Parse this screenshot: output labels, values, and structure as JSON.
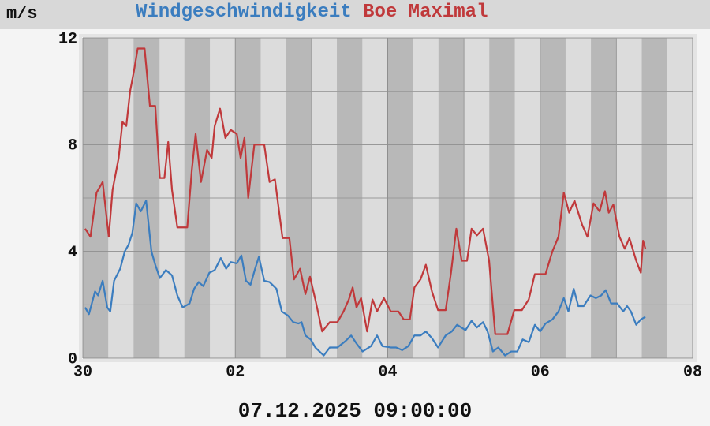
{
  "chart_data": {
    "type": "line",
    "unit_label": "m/s",
    "footer": "07.12.2025 09:00:00",
    "xlim": [
      0,
      8
    ],
    "xticks": [
      {
        "value": 0,
        "label": "30"
      },
      {
        "value": 2,
        "label": "02"
      },
      {
        "value": 4,
        "label": "04"
      },
      {
        "value": 6,
        "label": "06"
      },
      {
        "value": 8,
        "label": "08"
      }
    ],
    "xminor": [
      1,
      3,
      5,
      7
    ],
    "ylim": [
      0,
      12
    ],
    "yticks": [
      0,
      4,
      8,
      12
    ],
    "yminor": [
      2,
      6,
      10
    ],
    "grid": true,
    "series": [
      {
        "name": "Windgeschwindigkeit",
        "color": "#3b7dbf",
        "x": [
          0.03,
          0.08,
          0.16,
          0.2,
          0.26,
          0.32,
          0.36,
          0.41,
          0.49,
          0.55,
          0.6,
          0.65,
          0.7,
          0.76,
          0.83,
          0.9,
          0.95,
          1.01,
          1.09,
          1.17,
          1.24,
          1.31,
          1.4,
          1.46,
          1.52,
          1.58,
          1.66,
          1.73,
          1.81,
          1.88,
          1.94,
          2.02,
          2.08,
          2.14,
          2.2,
          2.26,
          2.31,
          2.38,
          2.45,
          2.54,
          2.61,
          2.69,
          2.76,
          2.83,
          2.87,
          2.92,
          2.99,
          3.05,
          3.16,
          3.24,
          3.34,
          3.45,
          3.52,
          3.59,
          3.67,
          3.78,
          3.86,
          3.93,
          4.04,
          4.11,
          4.19,
          4.27,
          4.35,
          4.43,
          4.5,
          4.58,
          4.66,
          4.76,
          4.84,
          4.91,
          5.02,
          5.1,
          5.17,
          5.25,
          5.31,
          5.38,
          5.45,
          5.54,
          5.62,
          5.7,
          5.77,
          5.85,
          5.93,
          6.0,
          6.07,
          6.16,
          6.24,
          6.31,
          6.37,
          6.44,
          6.5,
          6.57,
          6.66,
          6.73,
          6.8,
          6.86,
          6.93,
          7.01,
          7.09,
          7.14,
          7.19,
          7.26,
          7.32,
          7.38
        ],
        "values": [
          1.9,
          1.65,
          2.5,
          2.35,
          2.9,
          1.9,
          1.75,
          2.9,
          3.35,
          4.0,
          4.25,
          4.7,
          5.8,
          5.5,
          5.9,
          4.0,
          3.5,
          3.0,
          3.3,
          3.1,
          2.35,
          1.9,
          2.05,
          2.6,
          2.85,
          2.7,
          3.2,
          3.3,
          3.75,
          3.35,
          3.6,
          3.55,
          3.85,
          2.9,
          2.75,
          3.35,
          3.8,
          2.9,
          2.85,
          2.6,
          1.75,
          1.6,
          1.35,
          1.3,
          1.35,
          0.85,
          0.7,
          0.4,
          0.1,
          0.4,
          0.4,
          0.65,
          0.85,
          0.55,
          0.25,
          0.45,
          0.85,
          0.45,
          0.4,
          0.4,
          0.3,
          0.45,
          0.85,
          0.85,
          1.0,
          0.75,
          0.4,
          0.85,
          1.0,
          1.25,
          1.05,
          1.4,
          1.15,
          1.35,
          1.0,
          0.25,
          0.4,
          0.1,
          0.25,
          0.25,
          0.7,
          0.6,
          1.25,
          1.0,
          1.3,
          1.45,
          1.75,
          2.25,
          1.75,
          2.6,
          1.95,
          1.95,
          2.35,
          2.25,
          2.35,
          2.55,
          2.05,
          2.05,
          1.75,
          1.95,
          1.75,
          1.25,
          1.45,
          1.55
        ]
      },
      {
        "name": "Boe Maximal",
        "color": "#c0393b",
        "x": [
          0.03,
          0.1,
          0.18,
          0.26,
          0.34,
          0.39,
          0.47,
          0.52,
          0.57,
          0.62,
          0.67,
          0.72,
          0.81,
          0.88,
          0.95,
          1.01,
          1.07,
          1.12,
          1.17,
          1.24,
          1.37,
          1.43,
          1.48,
          1.55,
          1.63,
          1.69,
          1.73,
          1.8,
          1.87,
          1.94,
          2.02,
          2.07,
          2.12,
          2.17,
          2.25,
          2.38,
          2.45,
          2.52,
          2.62,
          2.71,
          2.77,
          2.85,
          2.92,
          2.98,
          3.05,
          3.14,
          3.24,
          3.34,
          3.42,
          3.49,
          3.54,
          3.59,
          3.65,
          3.73,
          3.8,
          3.86,
          3.95,
          4.04,
          4.14,
          4.21,
          4.29,
          4.35,
          4.43,
          4.5,
          4.58,
          4.66,
          4.76,
          4.83,
          4.9,
          4.97,
          5.04,
          5.1,
          5.17,
          5.25,
          5.33,
          5.41,
          5.57,
          5.66,
          5.76,
          5.85,
          5.93,
          6.07,
          6.16,
          6.24,
          6.31,
          6.38,
          6.45,
          6.55,
          6.62,
          6.7,
          6.78,
          6.85,
          6.9,
          6.96,
          7.04,
          7.11,
          7.17,
          7.26,
          7.32,
          7.35,
          7.38
        ],
        "values": [
          4.85,
          4.55,
          6.2,
          6.6,
          4.55,
          6.3,
          7.5,
          8.85,
          8.7,
          10.0,
          10.75,
          11.6,
          11.6,
          9.45,
          9.45,
          6.75,
          6.75,
          8.1,
          6.3,
          4.9,
          4.9,
          7.05,
          8.4,
          6.6,
          7.8,
          7.5,
          8.7,
          9.35,
          8.25,
          8.55,
          8.4,
          7.5,
          8.25,
          6.0,
          8.0,
          8.0,
          6.6,
          6.7,
          4.5,
          4.5,
          2.95,
          3.35,
          2.4,
          3.05,
          2.2,
          1.0,
          1.35,
          1.35,
          1.75,
          2.2,
          2.65,
          1.9,
          2.25,
          1.0,
          2.2,
          1.75,
          2.25,
          1.75,
          1.75,
          1.45,
          1.45,
          2.65,
          2.95,
          3.5,
          2.5,
          1.8,
          1.8,
          3.2,
          4.85,
          3.65,
          3.65,
          4.85,
          4.6,
          4.85,
          3.65,
          0.9,
          0.9,
          1.8,
          1.8,
          2.2,
          3.15,
          3.15,
          4.0,
          4.55,
          6.2,
          5.45,
          5.9,
          5.0,
          4.55,
          5.8,
          5.5,
          6.25,
          5.45,
          5.75,
          4.55,
          4.1,
          4.5,
          3.65,
          3.2,
          4.4,
          4.1
        ]
      }
    ]
  }
}
